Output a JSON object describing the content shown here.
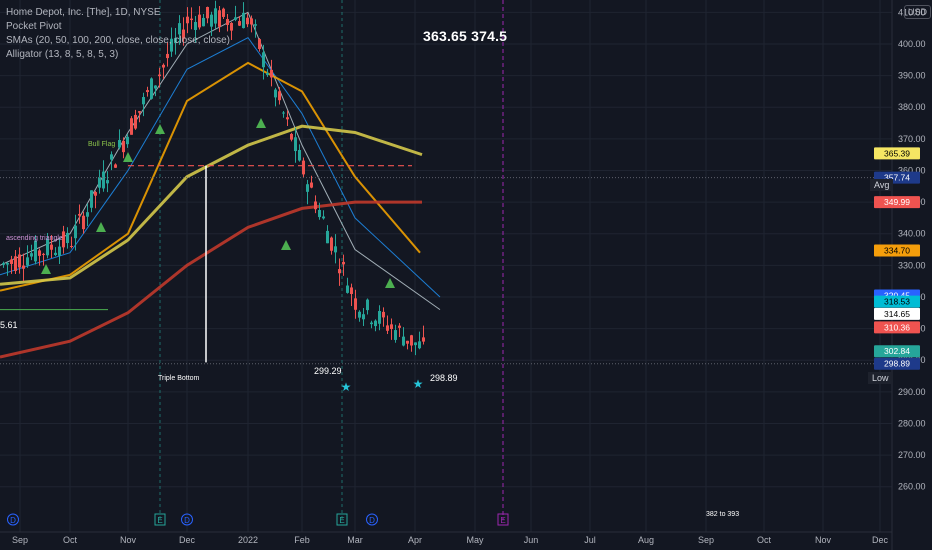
{
  "legend": {
    "symbol": "Home Depot, Inc. [The], 1D, NYSE",
    "indicator1": "Pocket Pivot",
    "indicator2": "SMAs (20, 50, 100, 200, close, close, close, close)",
    "indicator3": "Alligator (13, 8, 5, 8, 5, 3)"
  },
  "top_note": "363.65  374.5",
  "currency": "USD",
  "avg_label": "Avg",
  "low_label": "Low",
  "colors": {
    "background": "#131722",
    "up": "#26a69a",
    "down": "#ef5350",
    "sma20": "#b0bec5",
    "sma50": "#1e88e5",
    "sma100": "#f0a000",
    "sma200": "#d4c84a",
    "sma_long": "#c0392b"
  },
  "chart_data": {
    "type": "line",
    "title": "Home Depot, Inc. [The], 1D, NYSE",
    "x_ticks": [
      "Sep",
      "Oct",
      "Nov",
      "Dec",
      "2022",
      "Feb",
      "Mar",
      "Apr",
      "May",
      "Jun",
      "Jul",
      "Aug",
      "Sep",
      "Oct",
      "Nov",
      "Dec"
    ],
    "y_ticks": [
      260,
      270,
      280,
      290,
      300,
      310,
      320,
      330,
      340,
      350,
      360,
      370,
      380,
      390,
      400,
      410
    ],
    "ylim": [
      252,
      412
    ],
    "price_labels": [
      {
        "value": 365.39,
        "text": "365.39",
        "color": "#f5e663",
        "text_color": "#000000"
      },
      {
        "value": 357.74,
        "text": "357.74",
        "color": "#1e3a8a",
        "text_color": "#ffffff"
      },
      {
        "value": 349.99,
        "text": "349.99",
        "color": "#ef5350",
        "text_color": "#ffffff"
      },
      {
        "value": 334.7,
        "text": "334.70",
        "color": "#f59e0b",
        "text_color": "#000000"
      },
      {
        "value": 320.45,
        "text": "320.45",
        "color": "#2962ff",
        "text_color": "#ffffff"
      },
      {
        "value": 318.53,
        "text": "318.53",
        "color": "#00bcd4",
        "text_color": "#000000"
      },
      {
        "value": 314.65,
        "text": "314.65",
        "color": "#ffffff",
        "text_color": "#000000"
      },
      {
        "value": 310.36,
        "text": "310.36",
        "color": "#ef5350",
        "text_color": "#ffffff"
      },
      {
        "value": 302.84,
        "text": "302.84",
        "color": "#26a69a",
        "text_color": "#ffffff"
      },
      {
        "value": 298.89,
        "text": "298.89",
        "color": "#1e3a8a",
        "text_color": "#ffffff"
      }
    ],
    "annotations": [
      {
        "text": "Bull Flag",
        "color": "#8bc34a"
      },
      {
        "text": "ascending triangle",
        "color": "#ce93d8"
      },
      {
        "text": "Triple Bottom",
        "color": "#ffffff"
      },
      {
        "text": "299.29",
        "color": "#ffffff"
      },
      {
        "text": "298.89",
        "color": "#ffffff"
      },
      {
        "text": "5.61",
        "color": "#ffffff"
      },
      {
        "text": "382   to 393",
        "color": "#ffffff"
      }
    ],
    "reference_levels": {
      "dashed_red": 361.5,
      "green_left": 316,
      "avg": 357.74,
      "low": 298.89
    },
    "ohlc_close_path": [
      {
        "x": "Sep",
        "y": 330
      },
      {
        "x": "Oct",
        "y": 338
      },
      {
        "x": "Nov",
        "y": 373
      },
      {
        "x": "Dec",
        "y": 408
      },
      {
        "x": "2022",
        "y": 408
      },
      {
        "x": "Feb",
        "y": 360
      },
      {
        "x": "Mar",
        "y": 318
      },
      {
        "x": "Apr",
        "y": 302.84
      }
    ],
    "series": [
      {
        "name": "SMA 20",
        "values": [
          330,
          340,
          372,
          400,
          410,
          368,
          335,
          316
        ]
      },
      {
        "name": "SMA 50",
        "values": [
          327,
          334,
          360,
          392,
          402,
          378,
          345,
          320
        ]
      },
      {
        "name": "SMA 100",
        "values": [
          322,
          327,
          340,
          382,
          394,
          385,
          358,
          334
        ]
      },
      {
        "name": "SMA 200",
        "values": [
          324,
          326,
          338,
          358,
          368,
          374,
          372,
          365
        ]
      },
      {
        "name": "SMA long",
        "values": [
          301,
          306,
          315,
          330,
          342,
          348,
          350,
          350
        ]
      }
    ],
    "event_markers": [
      "D",
      "E",
      "D",
      "E",
      "D",
      "E"
    ]
  }
}
